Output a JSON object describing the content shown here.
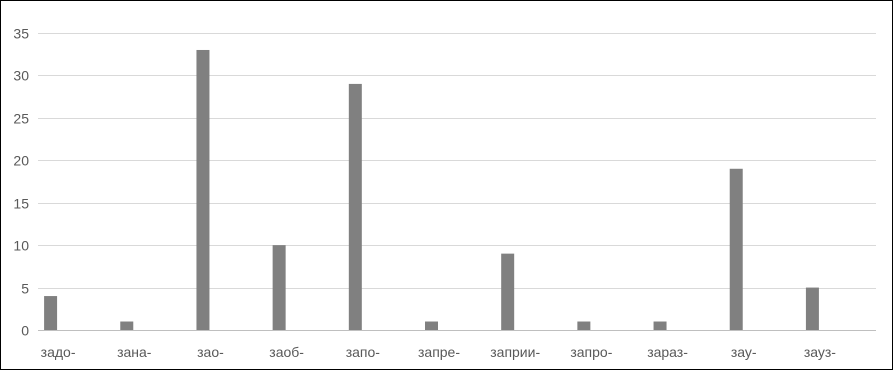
{
  "chart_data": {
    "type": "bar",
    "categories": [
      "задо-",
      "зана-",
      "зао-",
      "заоб-",
      "запо-",
      "запре-",
      "заприи-",
      "запро-",
      "зараз-",
      "зау-",
      "зауз-"
    ],
    "values": [
      4,
      1,
      33,
      10,
      29,
      1,
      9,
      1,
      1,
      19,
      5
    ],
    "title": "",
    "xlabel": "",
    "ylabel": "",
    "ylim": [
      0,
      35
    ],
    "yticks": [
      0,
      5,
      10,
      15,
      20,
      25,
      30,
      35
    ],
    "grid": true,
    "legend": "none",
    "bar_color": "#808080"
  }
}
